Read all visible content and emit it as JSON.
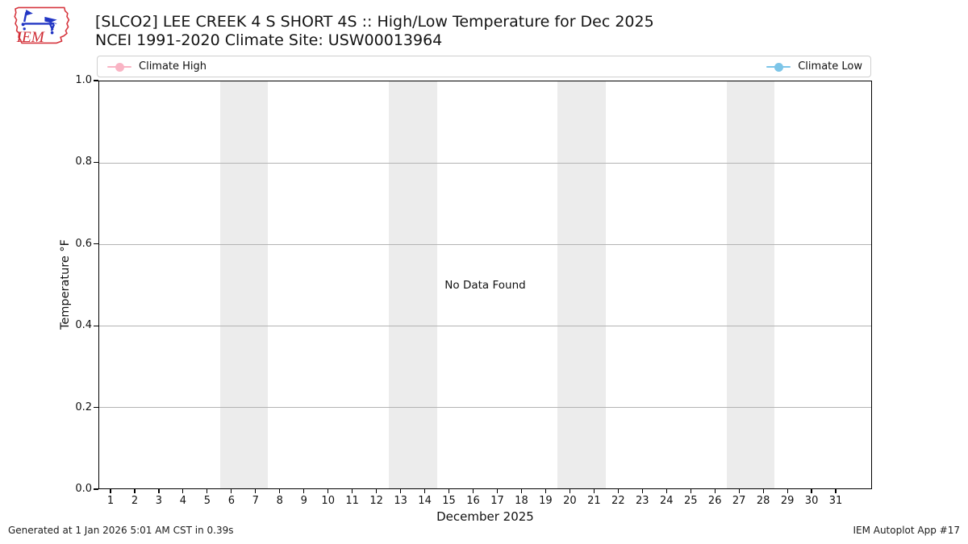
{
  "header": {
    "logo_text": "IEM",
    "title_line1": "[SLCO2] LEE CREEK 4 S SHORT 4S :: High/Low Temperature for Dec 2025",
    "title_line2": "NCEI 1991-2020 Climate Site: USW00013964"
  },
  "legend": {
    "items": [
      {
        "label": "Climate High",
        "color": "#f9b4c4"
      },
      {
        "label": "Climate Low",
        "color": "#7cc5e8"
      }
    ]
  },
  "chart_data": {
    "type": "line",
    "title": "[SLCO2] LEE CREEK 4 S SHORT 4S :: High/Low Temperature for Dec 2025",
    "subtitle": "NCEI 1991-2020 Climate Site: USW00013964",
    "xlabel": "December 2025",
    "ylabel": "Temperature °F",
    "xlim": [
      0.5,
      32.5
    ],
    "ylim": [
      0,
      1
    ],
    "xticks": [
      1,
      2,
      3,
      4,
      5,
      6,
      7,
      8,
      9,
      10,
      11,
      12,
      13,
      14,
      15,
      16,
      17,
      18,
      19,
      20,
      21,
      22,
      23,
      24,
      25,
      26,
      27,
      28,
      29,
      30,
      31
    ],
    "ytick_values": [
      0,
      0.2,
      0.4,
      0.6,
      0.8,
      1.0
    ],
    "ytick_labels": [
      "0.0",
      "0.2",
      "0.4",
      "0.6",
      "0.8",
      "1.0"
    ],
    "grid_lines": [
      0.2,
      0.4,
      0.6,
      0.8
    ],
    "grid": "horizontal",
    "legend_position": "top, spanning plot width",
    "series": [
      {
        "name": "Climate High",
        "color": "#f9b4c4",
        "x": [],
        "values": []
      },
      {
        "name": "Climate Low",
        "color": "#7cc5e8",
        "x": [],
        "values": []
      }
    ],
    "no_data_text": "No Data Found",
    "weekend_bands": [
      [
        5.5,
        7.5
      ],
      [
        12.5,
        14.5
      ],
      [
        19.5,
        21.5
      ],
      [
        26.5,
        28.5
      ]
    ],
    "band_color": "#ececec",
    "grid_color": "#b3b3b3"
  },
  "logo_colors": {
    "outline_red": "#d6363e",
    "text_red": "#cf2a33",
    "drawing_blue": "#2236c4"
  },
  "footer": {
    "left": "Generated at 1 Jan 2026 5:01 AM CST in 0.39s",
    "right": "IEM Autoplot App #17"
  }
}
